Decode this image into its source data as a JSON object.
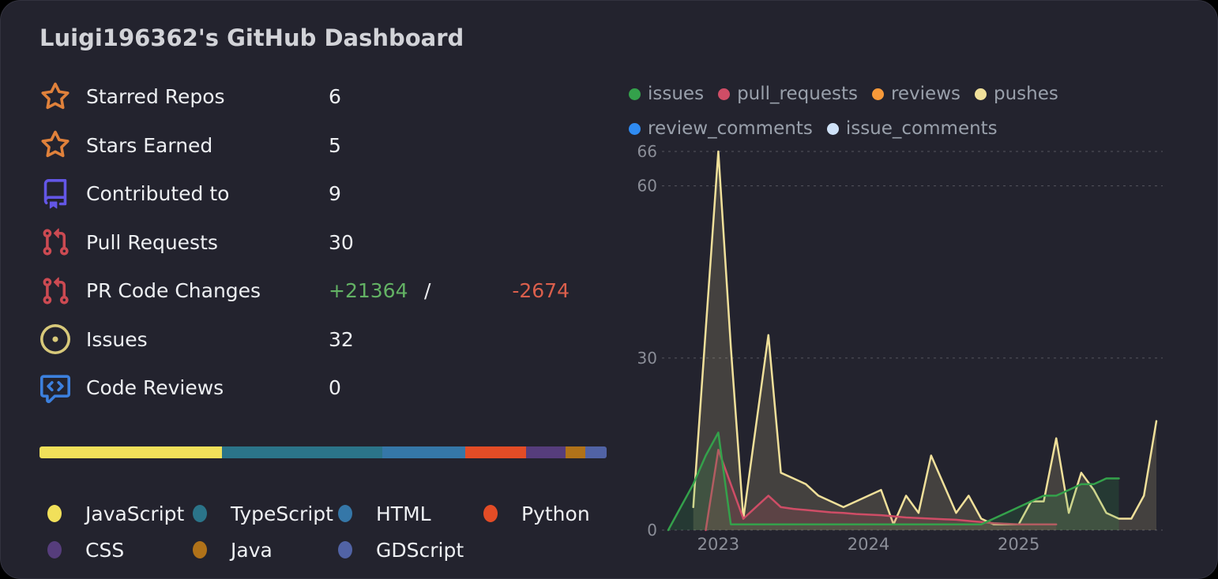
{
  "window": {
    "background": "#000000",
    "card_background": "#23232e",
    "card_border": "#32323e"
  },
  "header": {
    "title": "Luigi196362's GitHub Dashboard",
    "title_color": "#d2d3d8"
  },
  "stats": [
    {
      "icon": "star-icon",
      "icon_color": "#e0813b",
      "label": "Starred Repos",
      "value": "6"
    },
    {
      "icon": "star-icon",
      "icon_color": "#e0813b",
      "label": "Stars Earned",
      "value": "5"
    },
    {
      "icon": "repo-icon",
      "icon_color": "#6356e6",
      "label": "Contributed to",
      "value": "9"
    },
    {
      "icon": "pull-request-icon",
      "icon_color": "#cc4a52",
      "label": "Pull Requests",
      "value": "30"
    },
    {
      "icon": "pull-request-icon",
      "icon_color": "#cc4a52",
      "label": "PR Code Changes",
      "additions": "+21364",
      "separator": "/",
      "deletions": "-2674",
      "additions_color": "#63b264",
      "deletions_color": "#db5f4c"
    },
    {
      "icon": "issue-icon",
      "icon_color": "#d8c97a",
      "label": "Issues",
      "value": "32"
    },
    {
      "icon": "code-review-icon",
      "icon_color": "#3c80de",
      "label": "Code Reviews",
      "value": "0"
    }
  ],
  "languages": {
    "items": [
      {
        "name": "JavaScript",
        "color": "#f1e05a",
        "percent": 32.2
      },
      {
        "name": "TypeScript",
        "color": "#2b7489",
        "percent": 28.3
      },
      {
        "name": "HTML",
        "color": "#3577a8",
        "percent": 14.6
      },
      {
        "name": "Python",
        "color": "#e34c26",
        "percent": 10.7
      },
      {
        "name": "CSS",
        "color": "#563d7c",
        "percent": 7.0
      },
      {
        "name": "Java",
        "color": "#b07219",
        "percent": 3.5
      },
      {
        "name": "GDScript",
        "color": "#5163a5",
        "percent": 3.7
      }
    ]
  },
  "chart_data": {
    "type": "area",
    "title": "",
    "legend_position": "top",
    "grid": true,
    "ylim": [
      0,
      66
    ],
    "yticks": [
      0,
      30,
      60,
      66
    ],
    "xticks": [
      {
        "label": "2023",
        "month_index": 4
      },
      {
        "label": "2024",
        "month_index": 16
      },
      {
        "label": "2025",
        "month_index": 28
      }
    ],
    "axis_text_color": "#8b8e98",
    "legend_text_color": "#99a0ab",
    "grid_color": "#55565f",
    "x_months": [
      "2022-09",
      "2022-10",
      "2022-11",
      "2022-12",
      "2023-01",
      "2023-02",
      "2023-03",
      "2023-04",
      "2023-05",
      "2023-06",
      "2023-07",
      "2023-08",
      "2023-09",
      "2023-10",
      "2023-11",
      "2023-12",
      "2024-01",
      "2024-02",
      "2024-03",
      "2024-04",
      "2024-05",
      "2024-06",
      "2024-07",
      "2024-08",
      "2024-09",
      "2024-10",
      "2024-11",
      "2024-12",
      "2025-01",
      "2025-02",
      "2025-03",
      "2025-04",
      "2025-05",
      "2025-06",
      "2025-07",
      "2025-08",
      "2025-09",
      "2025-10",
      "2025-11",
      "2025-12"
    ],
    "series": [
      {
        "name": "issues",
        "color": "#34a14b",
        "z": 3,
        "fill_opacity": 0.18,
        "values": [
          0,
          4,
          8,
          13,
          17,
          1,
          1,
          1,
          1,
          1,
          1,
          1,
          1,
          1,
          1,
          1,
          1,
          1,
          1,
          1,
          1,
          1,
          1,
          1,
          1,
          1,
          2,
          3,
          4,
          5,
          6,
          6,
          7,
          8,
          8,
          9,
          9,
          null,
          null,
          null
        ]
      },
      {
        "name": "pull_requests",
        "color": "#cf4d66",
        "z": 2,
        "fill_opacity": 0.18,
        "values": [
          null,
          null,
          null,
          0,
          14,
          8,
          2,
          4,
          6,
          4,
          3.7,
          3.5,
          3.3,
          3.1,
          3,
          2.8,
          2.7,
          2.6,
          2.4,
          2.2,
          2.1,
          2,
          1.9,
          1.8,
          1.6,
          1.4,
          1.2,
          1.1,
          1,
          1,
          1,
          1,
          null,
          null,
          null,
          null,
          null,
          null,
          null,
          null
        ]
      },
      {
        "name": "reviews",
        "color": "#f79939",
        "z": 0,
        "fill_opacity": 0.16,
        "values": []
      },
      {
        "name": "pushes",
        "color": "#f0e09a",
        "z": 1,
        "fill_opacity": 0.16,
        "values": [
          null,
          null,
          4,
          35,
          66,
          32,
          2,
          18,
          34,
          10,
          9,
          8,
          6,
          5,
          4,
          5,
          6,
          7,
          1,
          6,
          3,
          13,
          8,
          3,
          6,
          2,
          1,
          1,
          1,
          5,
          5,
          16,
          3,
          10,
          7,
          3,
          2,
          2,
          6,
          19
        ]
      },
      {
        "name": "review_comments",
        "color": "#2f8bf2",
        "z": 0,
        "fill_opacity": 0.16,
        "values": []
      },
      {
        "name": "issue_comments",
        "color": "#cfe2f8",
        "z": 0,
        "fill_opacity": 0.16,
        "values": []
      }
    ]
  }
}
